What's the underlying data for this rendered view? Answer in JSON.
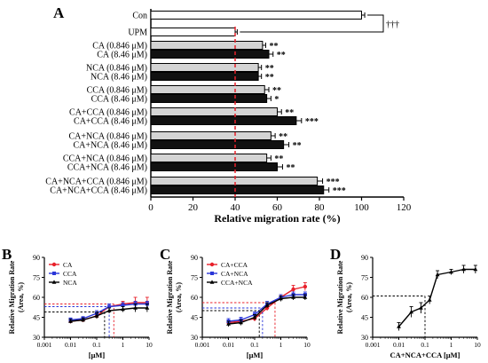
{
  "colors": {
    "black": "#000000",
    "gray_bar": "#d4d4d4",
    "red": "#e8202a",
    "blue": "#2a36d8",
    "threshold": "#e8202a"
  },
  "chart_data": [
    {
      "panel": "A",
      "type": "bar",
      "orientation": "horizontal",
      "xlabel": "Relative migration rate (%)",
      "xlim": [
        0,
        120
      ],
      "xticks": [
        0,
        20,
        40,
        60,
        80,
        100,
        120
      ],
      "reference_line": 40,
      "bars": [
        {
          "label": "Con",
          "value": 100,
          "err": 1.5,
          "fill": "white",
          "sig": ""
        },
        {
          "label": "UPM",
          "value": 40,
          "err": 1.0,
          "fill": "white",
          "sig": ""
        },
        {
          "label": "CA (0.846 μM)",
          "value": 53,
          "err": 1.5,
          "fill": "gray",
          "sig": "**"
        },
        {
          "label": "CA (8.46 μM)",
          "value": 56,
          "err": 2.0,
          "fill": "black",
          "sig": "**"
        },
        {
          "label": "NCA (0.846 μM)",
          "value": 51,
          "err": 1.5,
          "fill": "gray",
          "sig": "**"
        },
        {
          "label": "NCA (8.46 μM)",
          "value": 51,
          "err": 1.5,
          "fill": "black",
          "sig": "**"
        },
        {
          "label": "CCA (0.846 μM)",
          "value": 54,
          "err": 2.0,
          "fill": "gray",
          "sig": "**"
        },
        {
          "label": "CCA (8.46 μM)",
          "value": 55,
          "err": 2.0,
          "fill": "black",
          "sig": "*"
        },
        {
          "label": "CA+CCA (0.846 μM)",
          "value": 60,
          "err": 2.0,
          "fill": "gray",
          "sig": "**"
        },
        {
          "label": "CA+CCA (8.46 μM)",
          "value": 69,
          "err": 2.5,
          "fill": "black",
          "sig": "***"
        },
        {
          "label": "CA+NCA (0.846 μM)",
          "value": 57,
          "err": 2.0,
          "fill": "gray",
          "sig": "**"
        },
        {
          "label": "CA+NCA (8.46 μM)",
          "value": 63,
          "err": 2.5,
          "fill": "black",
          "sig": "**"
        },
        {
          "label": "CCA+NCA (0.846 μM)",
          "value": 55,
          "err": 2.0,
          "fill": "gray",
          "sig": "**"
        },
        {
          "label": "CCA+NCA (8.46 μM)",
          "value": 60,
          "err": 2.5,
          "fill": "black",
          "sig": "**"
        },
        {
          "label": "CA+NCA+CCA (0.846 μM)",
          "value": 79,
          "err": 2.5,
          "fill": "gray",
          "sig": "***"
        },
        {
          "label": "CA+NCA+CCA (8.46 μM)",
          "value": 82,
          "err": 2.5,
          "fill": "black",
          "sig": "***"
        }
      ],
      "bracket_sig": "†††"
    },
    {
      "panel": "B",
      "type": "line",
      "xscale": "log",
      "xlabel": "[μM]",
      "ylabel": "Relative Migration Rate (Area, %)",
      "xlim": [
        0.001,
        10
      ],
      "ylim": [
        30,
        90
      ],
      "xticks": [
        "0.001",
        "0.01",
        "0.1",
        "1",
        "10"
      ],
      "yticks": [
        30,
        45,
        60,
        75,
        90
      ],
      "x": [
        0.01,
        0.03,
        0.1,
        0.3,
        1,
        3,
        8.46
      ],
      "series": [
        {
          "name": "CA",
          "color": "red",
          "marker": "circle",
          "values": [
            42,
            43,
            46,
            53,
            55,
            56,
            56
          ],
          "err": [
            1.5,
            1.5,
            2,
            2,
            2,
            4,
            4
          ],
          "ec50": 0.45,
          "plateau": 55
        },
        {
          "name": "CCA",
          "color": "blue",
          "marker": "square",
          "values": [
            43,
            44,
            48,
            53,
            54,
            55,
            55
          ],
          "err": [
            1.5,
            1.5,
            2,
            2,
            2,
            2,
            2
          ],
          "ec50": 0.3,
          "plateau": 53
        },
        {
          "name": "NCA",
          "color": "black",
          "marker": "triangle",
          "values": [
            42,
            43,
            46,
            50,
            51,
            52,
            52
          ],
          "err": [
            1.5,
            1.5,
            2,
            2,
            2,
            3,
            3
          ],
          "ec50": 0.2,
          "plateau": 49
        }
      ]
    },
    {
      "panel": "C",
      "type": "line",
      "xscale": "log",
      "xlabel": "[μM]",
      "ylabel": "Relative Migration Rate (Area, %)",
      "xlim": [
        0.001,
        10
      ],
      "ylim": [
        30,
        90
      ],
      "xticks": [
        "0.001",
        "0.01",
        "0.1",
        "1",
        "10"
      ],
      "yticks": [
        30,
        45,
        60,
        75,
        90
      ],
      "x": [
        0.01,
        0.03,
        0.1,
        0.3,
        1,
        3,
        8.46
      ],
      "series": [
        {
          "name": "CA+CCA",
          "color": "red",
          "marker": "circle",
          "values": [
            41,
            42,
            44,
            52,
            60,
            66,
            68
          ],
          "err": [
            2,
            2,
            2,
            2,
            2,
            3,
            3
          ],
          "ec50": 0.6,
          "plateau": 56
        },
        {
          "name": "CA+NCA",
          "color": "blue",
          "marker": "square",
          "values": [
            42,
            43,
            47,
            55,
            60,
            62,
            62
          ],
          "err": [
            2,
            2,
            2,
            2,
            2,
            2,
            2
          ],
          "ec50": 0.2,
          "plateau": 52
        },
        {
          "name": "CCA+NCA",
          "color": "black",
          "marker": "triangle",
          "values": [
            40,
            41,
            45,
            54,
            59,
            60,
            60
          ],
          "err": [
            2,
            2,
            2,
            2,
            2,
            2,
            2
          ],
          "ec50": 0.15,
          "plateau": 50
        }
      ]
    },
    {
      "panel": "D",
      "type": "line",
      "xscale": "log",
      "xlabel": "CA+NCA+CCA [μM]",
      "ylabel": "Relative Migration Rate (Area, %)",
      "xlim": [
        0.001,
        10
      ],
      "ylim": [
        30,
        90
      ],
      "xticks": [
        "0.001",
        "0.01",
        "0.1",
        "1",
        "10"
      ],
      "yticks": [
        30,
        45,
        60,
        75,
        90
      ],
      "x": [
        0.01,
        0.03,
        0.07,
        0.15,
        0.3,
        1,
        3,
        8.46
      ],
      "series": [
        {
          "name": "CA+NCA+CCA",
          "color": "black",
          "marker": "triangle",
          "values": [
            38,
            49,
            52,
            58,
            77,
            79,
            81,
            81
          ],
          "err": [
            3,
            4,
            4,
            3,
            3,
            2,
            3,
            3
          ],
          "ec50": 0.1,
          "plateau": 61
        }
      ]
    }
  ]
}
